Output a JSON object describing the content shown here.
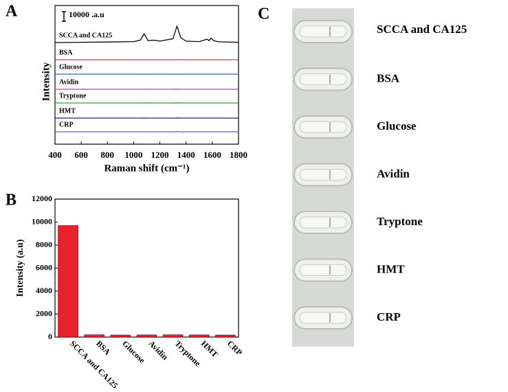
{
  "chart_data": [
    {
      "type": "spectra",
      "panel_label": "A",
      "xlabel": "Raman shift (cm⁻¹)",
      "ylabel": "Intensity",
      "x": [
        400,
        600,
        800,
        1000,
        1050,
        1080,
        1110,
        1150,
        1200,
        1300,
        1330,
        1360,
        1400,
        1500,
        1560,
        1575,
        1590,
        1610,
        1650,
        1800
      ],
      "xlim": [
        400,
        1800
      ],
      "xticks": [
        400,
        600,
        800,
        1000,
        1200,
        1400,
        1600,
        1800
      ],
      "scale_bar": {
        "value": 10000,
        "label": "10000 .a.u"
      },
      "series": [
        {
          "name": "SCCA and CA125",
          "color": "#000000",
          "values": [
            0,
            300,
            600,
            1000,
            2500,
            9000,
            2000,
            2500,
            1500,
            4000,
            17000,
            5000,
            1500,
            1000,
            3500,
            2000,
            4500,
            2000,
            800,
            300
          ]
        },
        {
          "name": "BSA",
          "color": "#d9304c",
          "values": [
            0,
            0,
            0,
            0,
            0,
            100,
            0,
            0,
            0,
            0,
            100,
            0,
            0,
            0,
            0,
            0,
            0,
            0,
            0,
            0
          ]
        },
        {
          "name": "Glucose",
          "color": "#3a5fb0",
          "values": [
            0,
            0,
            0,
            0,
            0,
            100,
            0,
            0,
            0,
            0,
            100,
            0,
            0,
            0,
            0,
            0,
            0,
            0,
            0,
            0
          ]
        },
        {
          "name": "Avidin",
          "color": "#c436b8",
          "values": [
            0,
            0,
            0,
            0,
            0,
            100,
            0,
            0,
            0,
            0,
            100,
            0,
            0,
            0,
            0,
            0,
            0,
            0,
            0,
            0
          ]
        },
        {
          "name": "Tryptone",
          "color": "#2e9a3a",
          "values": [
            0,
            0,
            0,
            0,
            0,
            100,
            0,
            0,
            0,
            0,
            100,
            0,
            0,
            0,
            0,
            0,
            0,
            0,
            0,
            0
          ]
        },
        {
          "name": "HMT",
          "color": "#1b1f7a",
          "values": [
            0,
            0,
            0,
            0,
            0,
            100,
            0,
            0,
            0,
            0,
            100,
            0,
            0,
            0,
            0,
            0,
            0,
            0,
            0,
            0
          ]
        },
        {
          "name": "CRP",
          "color": "#5a62c8",
          "values": [
            0,
            0,
            0,
            0,
            0,
            100,
            0,
            0,
            0,
            0,
            300,
            0,
            0,
            0,
            0,
            0,
            0,
            0,
            0,
            0
          ]
        }
      ]
    },
    {
      "type": "bar",
      "panel_label": "B",
      "ylabel": "Intensity (a.u)",
      "color": "#e8212b",
      "categories": [
        "SCCA and CA125",
        "BSA",
        "Glucose",
        "Avidin",
        "Tryptone",
        "HMT",
        "CRP"
      ],
      "values": [
        9700,
        200,
        180,
        190,
        200,
        190,
        180
      ],
      "ylim": [
        0,
        12000
      ],
      "yticks": [
        0,
        2000,
        4000,
        6000,
        8000,
        10000,
        12000
      ]
    }
  ],
  "panel_c": {
    "label": "C",
    "strips": [
      "SCCA and CA125",
      "BSA",
      "Glucose",
      "Avidin",
      "Tryptone",
      "HMT",
      "CRP"
    ]
  }
}
